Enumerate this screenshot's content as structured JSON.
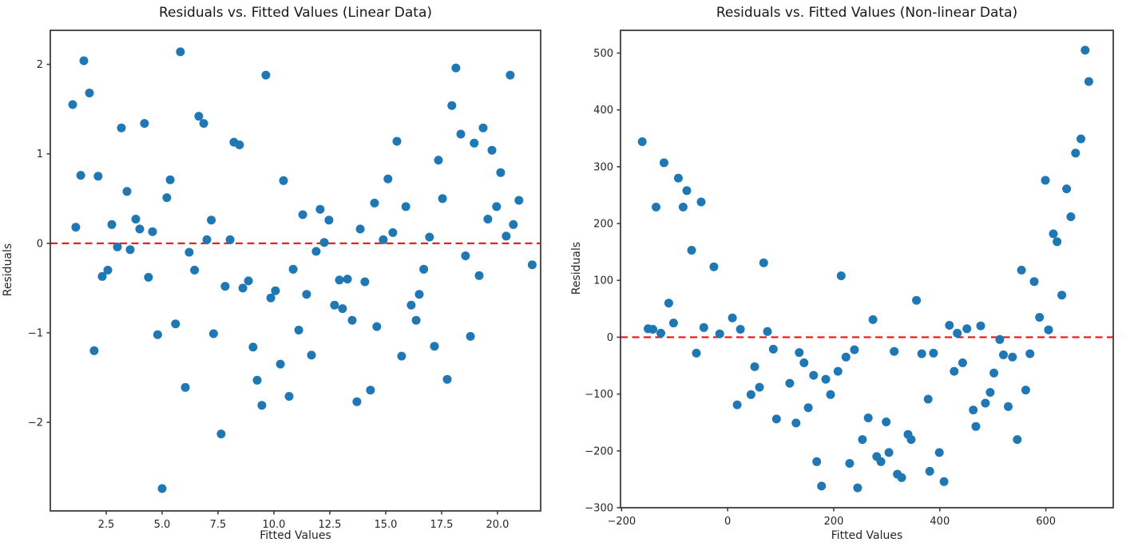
{
  "figure": {
    "background": "#ffffff"
  },
  "chart_data": [
    {
      "type": "scatter",
      "title": "Residuals vs. Fitted Values (Linear Data)",
      "xlabel": "Fitted Values",
      "ylabel": "Residuals",
      "xlim": [
        0,
        21.93
      ],
      "ylim": [
        -2.99,
        2.38
      ],
      "grid": false,
      "legend": null,
      "marker": {
        "color": "#1f77b4",
        "radius": 5.5
      },
      "refline": {
        "y": 0,
        "color": "#f01010",
        "style": "dashed"
      },
      "xticks": {
        "values": [
          2.5,
          5,
          7.5,
          10,
          12.5,
          15,
          17.5,
          20
        ],
        "labels": [
          "2.5",
          "5.0",
          "7.5",
          "10.0",
          "12.5",
          "15.0",
          "17.5",
          "20.0"
        ]
      },
      "yticks": {
        "values": [
          -2,
          -1,
          0,
          1,
          2
        ],
        "labels": [
          "−2",
          "−1",
          "0",
          "1",
          "2"
        ]
      },
      "points": [
        [
          1.0,
          1.55
        ],
        [
          1.14,
          0.18
        ],
        [
          1.36,
          0.76
        ],
        [
          1.5,
          2.04
        ],
        [
          1.75,
          1.68
        ],
        [
          1.96,
          -1.2
        ],
        [
          2.14,
          0.75
        ],
        [
          2.32,
          -0.37
        ],
        [
          2.57,
          -0.3
        ],
        [
          2.75,
          0.21
        ],
        [
          3.0,
          -0.04
        ],
        [
          3.18,
          1.29
        ],
        [
          3.43,
          0.58
        ],
        [
          3.57,
          -0.07
        ],
        [
          3.82,
          0.27
        ],
        [
          4.0,
          0.16
        ],
        [
          4.21,
          1.34
        ],
        [
          4.39,
          -0.38
        ],
        [
          4.57,
          0.13
        ],
        [
          4.8,
          -1.02
        ],
        [
          5.0,
          -2.74
        ],
        [
          5.21,
          0.51
        ],
        [
          5.36,
          0.71
        ],
        [
          5.6,
          -0.9
        ],
        [
          5.82,
          2.14
        ],
        [
          6.04,
          -1.61
        ],
        [
          6.21,
          -0.1
        ],
        [
          6.45,
          -0.3
        ],
        [
          6.64,
          1.42
        ],
        [
          6.86,
          1.34
        ],
        [
          7.0,
          0.04
        ],
        [
          7.2,
          0.26
        ],
        [
          7.3,
          -1.01
        ],
        [
          7.64,
          -2.13
        ],
        [
          7.82,
          -0.48
        ],
        [
          8.04,
          0.04
        ],
        [
          8.21,
          1.13
        ],
        [
          8.46,
          1.1
        ],
        [
          8.61,
          -0.5
        ],
        [
          8.86,
          -0.42
        ],
        [
          9.07,
          -1.16
        ],
        [
          9.25,
          -1.53
        ],
        [
          9.46,
          -1.81
        ],
        [
          9.64,
          1.88
        ],
        [
          9.86,
          -0.61
        ],
        [
          10.07,
          -0.53
        ],
        [
          10.29,
          -1.35
        ],
        [
          10.43,
          0.7
        ],
        [
          10.68,
          -1.71
        ],
        [
          10.86,
          -0.29
        ],
        [
          11.11,
          -0.97
        ],
        [
          11.29,
          0.32
        ],
        [
          11.46,
          -0.57
        ],
        [
          11.68,
          -1.25
        ],
        [
          11.89,
          -0.09
        ],
        [
          12.07,
          0.38
        ],
        [
          12.25,
          0.01
        ],
        [
          12.46,
          0.26
        ],
        [
          12.71,
          -0.69
        ],
        [
          12.93,
          -0.41
        ],
        [
          13.07,
          -0.73
        ],
        [
          13.29,
          -0.4
        ],
        [
          13.5,
          -0.86
        ],
        [
          13.71,
          -1.77
        ],
        [
          13.86,
          0.16
        ],
        [
          14.07,
          -0.43
        ],
        [
          14.32,
          -1.64
        ],
        [
          14.5,
          0.45
        ],
        [
          14.6,
          -0.93
        ],
        [
          14.89,
          0.04
        ],
        [
          15.1,
          0.72
        ],
        [
          15.32,
          0.12
        ],
        [
          15.5,
          1.14
        ],
        [
          15.71,
          -1.26
        ],
        [
          15.9,
          0.41
        ],
        [
          16.14,
          -0.69
        ],
        [
          16.36,
          -0.86
        ],
        [
          16.5,
          -0.57
        ],
        [
          16.7,
          -0.29
        ],
        [
          16.96,
          0.07
        ],
        [
          17.18,
          -1.15
        ],
        [
          17.36,
          0.93
        ],
        [
          17.54,
          0.5
        ],
        [
          17.75,
          -1.52
        ],
        [
          17.96,
          1.54
        ],
        [
          18.14,
          1.96
        ],
        [
          18.36,
          1.22
        ],
        [
          18.57,
          -0.14
        ],
        [
          18.79,
          -1.04
        ],
        [
          18.96,
          1.12
        ],
        [
          19.18,
          -0.36
        ],
        [
          19.36,
          1.29
        ],
        [
          19.57,
          0.27
        ],
        [
          19.75,
          1.04
        ],
        [
          19.96,
          0.41
        ],
        [
          20.14,
          0.79
        ],
        [
          20.39,
          0.08
        ],
        [
          20.57,
          1.88
        ],
        [
          20.71,
          0.21
        ],
        [
          20.96,
          0.48
        ],
        [
          21.55,
          -0.24
        ]
      ]
    },
    {
      "type": "scatter",
      "title": "Residuals vs. Fitted Values (Non-linear Data)",
      "xlabel": "Fitted Values",
      "ylabel": "Residuals",
      "xlim": [
        -202,
        727
      ],
      "ylim": [
        -300,
        540
      ],
      "grid": false,
      "legend": null,
      "marker": {
        "color": "#1f77b4",
        "radius": 5.5
      },
      "refline": {
        "y": 0,
        "color": "#f01010",
        "style": "dashed"
      },
      "xticks": {
        "values": [
          -200,
          0,
          200,
          400,
          600
        ],
        "labels": [
          "−200",
          "0",
          "200",
          "400",
          "600"
        ]
      },
      "yticks": {
        "values": [
          -300,
          -200,
          -100,
          0,
          100,
          200,
          300,
          400,
          500
        ],
        "labels": [
          "−300",
          "−200",
          "−100",
          "0",
          "100",
          "200",
          "300",
          "400",
          "500"
        ]
      },
      "points": [
        [
          -161,
          344
        ],
        [
          -150,
          15
        ],
        [
          -141,
          14
        ],
        [
          -135,
          229
        ],
        [
          -126,
          7
        ],
        [
          -120,
          307
        ],
        [
          -111,
          60
        ],
        [
          -102,
          25
        ],
        [
          -93,
          280
        ],
        [
          -84,
          229
        ],
        [
          -77,
          258
        ],
        [
          -68,
          153
        ],
        [
          -59,
          -28
        ],
        [
          -50,
          238
        ],
        [
          -45,
          17
        ],
        [
          -26,
          124
        ],
        [
          -15,
          6
        ],
        [
          9,
          34
        ],
        [
          18,
          -119
        ],
        [
          24,
          14
        ],
        [
          44,
          -101
        ],
        [
          51,
          -52
        ],
        [
          60,
          -88
        ],
        [
          68,
          131
        ],
        [
          75,
          10
        ],
        [
          86,
          -21
        ],
        [
          92,
          -144
        ],
        [
          117,
          -81
        ],
        [
          129,
          -151
        ],
        [
          135,
          -27
        ],
        [
          144,
          -45
        ],
        [
          152,
          -124
        ],
        [
          162,
          -67
        ],
        [
          168,
          -219
        ],
        [
          177,
          -262
        ],
        [
          185,
          -74
        ],
        [
          194,
          -101
        ],
        [
          208,
          -60
        ],
        [
          214,
          108
        ],
        [
          223,
          -35
        ],
        [
          230,
          -222
        ],
        [
          239,
          -22
        ],
        [
          245,
          -265
        ],
        [
          254,
          -180
        ],
        [
          265,
          -142
        ],
        [
          274,
          31
        ],
        [
          281,
          -210
        ],
        [
          289,
          -219
        ],
        [
          299,
          -149
        ],
        [
          304,
          -203
        ],
        [
          314,
          -25
        ],
        [
          320,
          -241
        ],
        [
          328,
          -247
        ],
        [
          340,
          -171
        ],
        [
          346,
          -180
        ],
        [
          356,
          65
        ],
        [
          366,
          -29
        ],
        [
          378,
          -109
        ],
        [
          381,
          -236
        ],
        [
          388,
          -28
        ],
        [
          399,
          -203
        ],
        [
          408,
          -254
        ],
        [
          418,
          21
        ],
        [
          427,
          -60
        ],
        [
          433,
          7
        ],
        [
          443,
          -45
        ],
        [
          451,
          15
        ],
        [
          463,
          -128
        ],
        [
          468,
          -157
        ],
        [
          477,
          20
        ],
        [
          486,
          -116
        ],
        [
          495,
          -97
        ],
        [
          502,
          -63
        ],
        [
          513,
          -4
        ],
        [
          520,
          -31
        ],
        [
          529,
          -122
        ],
        [
          537,
          -35
        ],
        [
          546,
          -180
        ],
        [
          554,
          118
        ],
        [
          562,
          -93
        ],
        [
          570,
          -29
        ],
        [
          578,
          98
        ],
        [
          588,
          35
        ],
        [
          599,
          276
        ],
        [
          605,
          13
        ],
        [
          614,
          182
        ],
        [
          621,
          168
        ],
        [
          630,
          74
        ],
        [
          639,
          261
        ],
        [
          647,
          212
        ],
        [
          656,
          324
        ],
        [
          666,
          349
        ],
        [
          674,
          505
        ],
        [
          681,
          450
        ]
      ]
    }
  ]
}
